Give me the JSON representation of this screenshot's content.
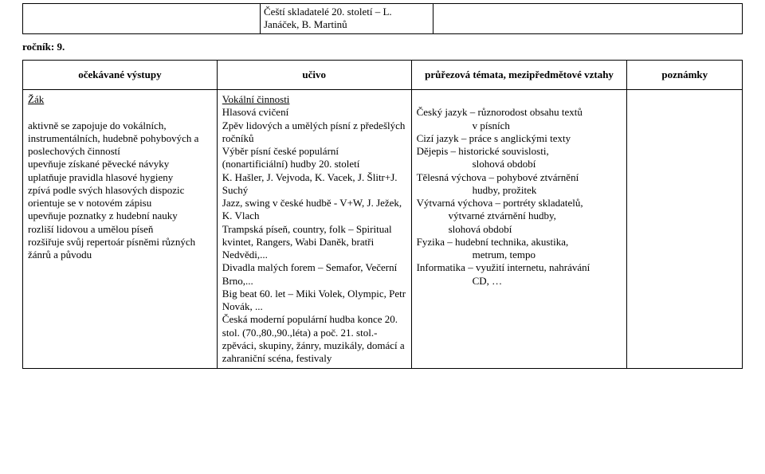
{
  "topTable": {
    "c1": "",
    "c2": "Čeští skladatelé 20. století – L. Janáček, B. Martinů",
    "c3": ""
  },
  "gradeLabel": "ročník: 9.",
  "headers": {
    "h1": "očekávané výstupy",
    "h2": "učivo",
    "h3": "průřezová témata, mezipředmětové vztahy",
    "h4": "poznámky"
  },
  "col1": {
    "zak": "Žák",
    "lines": [
      "aktivně se zapojuje do vokálních, instrumentálních, hudebně pohybových a poslechových činností",
      "upevňuje získané pěvecké návyky",
      "uplatňuje pravidla hlasové hygieny",
      "zpívá podle svých hlasových dispozic",
      "orientuje se v notovém zápisu",
      "upevňuje poznatky z hudební nauky",
      "rozliší lidovou a umělou píseň",
      "rozšiřuje svůj repertoár písněmi různých žánrů a původu"
    ]
  },
  "col2": {
    "title": "Vokální činnosti",
    "sub": "Hlasová cvičení",
    "lines": [
      "Zpěv lidových a umělých písní z předešlých ročníků",
      "Výběr písní české populární (nonartificiální) hudby 20. století",
      "K. Hašler, J. Vejvoda, K. Vacek, J. Šlitr+J. Suchý",
      "Jazz, swing v české hudbě - V+W, J. Ježek, K. Vlach",
      "Trampská píseň, country, folk – Spiritual kvintet, Rangers, Wabi Daněk, bratři Nedvědi,...",
      "Divadla malých forem – Semafor, Večerní Brno,...",
      "Big beat 60. let – Miki Volek, Olympic, Petr Novák, ...",
      "Česká moderní populární hudba konce 20. stol. (70.,80.,90.,léta) a poč. 21. stol.- zpěváci, skupiny, žánry, muzikály, domácí a zahraniční scéna, festivaly"
    ]
  },
  "col3": {
    "l1a": "Český jazyk – různorodost obsahu textů",
    "l1b": "v písních",
    "l2": "Cizí jazyk – práce s anglickými texty",
    "l3a": "Dějepis – historické souvislosti,",
    "l3b": "slohová období",
    "l4a": "Tělesná výchova – pohybové ztvárnění",
    "l4b": "hudby, prožitek",
    "l5a": "Výtvarná výchova – portréty skladatelů,",
    "l5b": "výtvarné ztvárnění hudby,",
    "l5c": "slohová období",
    "l6a": "Fyzika – hudební technika, akustika,",
    "l6b": "metrum, tempo",
    "l7a": "Informatika – využití internetu, nahrávání",
    "l7b": "CD, …"
  }
}
